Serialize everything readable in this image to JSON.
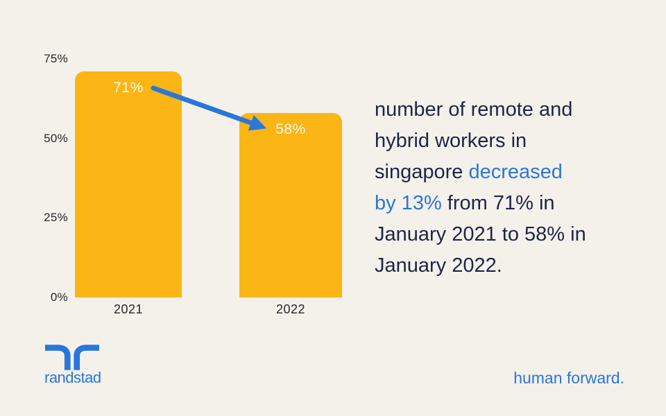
{
  "colors": {
    "background": "#f4f1eb",
    "bar_yellow": "#fbb514",
    "accent_blue": "#2b76d9",
    "navy": "#1d2547",
    "axis_text": "#24262b",
    "bar_label_text": "#fdfaf4"
  },
  "chart_data": {
    "type": "bar",
    "title": "",
    "categories": [
      "2021",
      "2022"
    ],
    "values": [
      71,
      58
    ],
    "value_labels": [
      "71%",
      "58%"
    ],
    "unit": "%",
    "y_ticks": [
      {
        "label": "75%",
        "value": 75
      },
      {
        "label": "50%",
        "value": 50
      },
      {
        "label": "25%",
        "value": 25
      },
      {
        "label": "0%",
        "value": 0
      }
    ],
    "ylim": [
      0,
      75
    ],
    "grid": false,
    "legend": false,
    "annotation_arrow": {
      "from_value": 71,
      "to_value": 58,
      "color": "#2b76d9"
    }
  },
  "caption": {
    "lines": [
      [
        {
          "t": "number of remote and",
          "c": "navy"
        }
      ],
      [
        {
          "t": "hybrid workers in",
          "c": "navy"
        }
      ],
      [
        {
          "t": "singapore ",
          "c": "navy"
        },
        {
          "t": "decreased",
          "c": "blue"
        }
      ],
      [
        {
          "t": "by 13%",
          "c": "blue"
        },
        {
          "t": " from 71% in",
          "c": "navy"
        }
      ],
      [
        {
          "t": "January 2021 to 58% in",
          "c": "navy"
        }
      ],
      [
        {
          "t": "January 2022.",
          "c": "navy"
        }
      ]
    ]
  },
  "footer": {
    "wordmark": "randstad",
    "tagline": "human forward."
  }
}
